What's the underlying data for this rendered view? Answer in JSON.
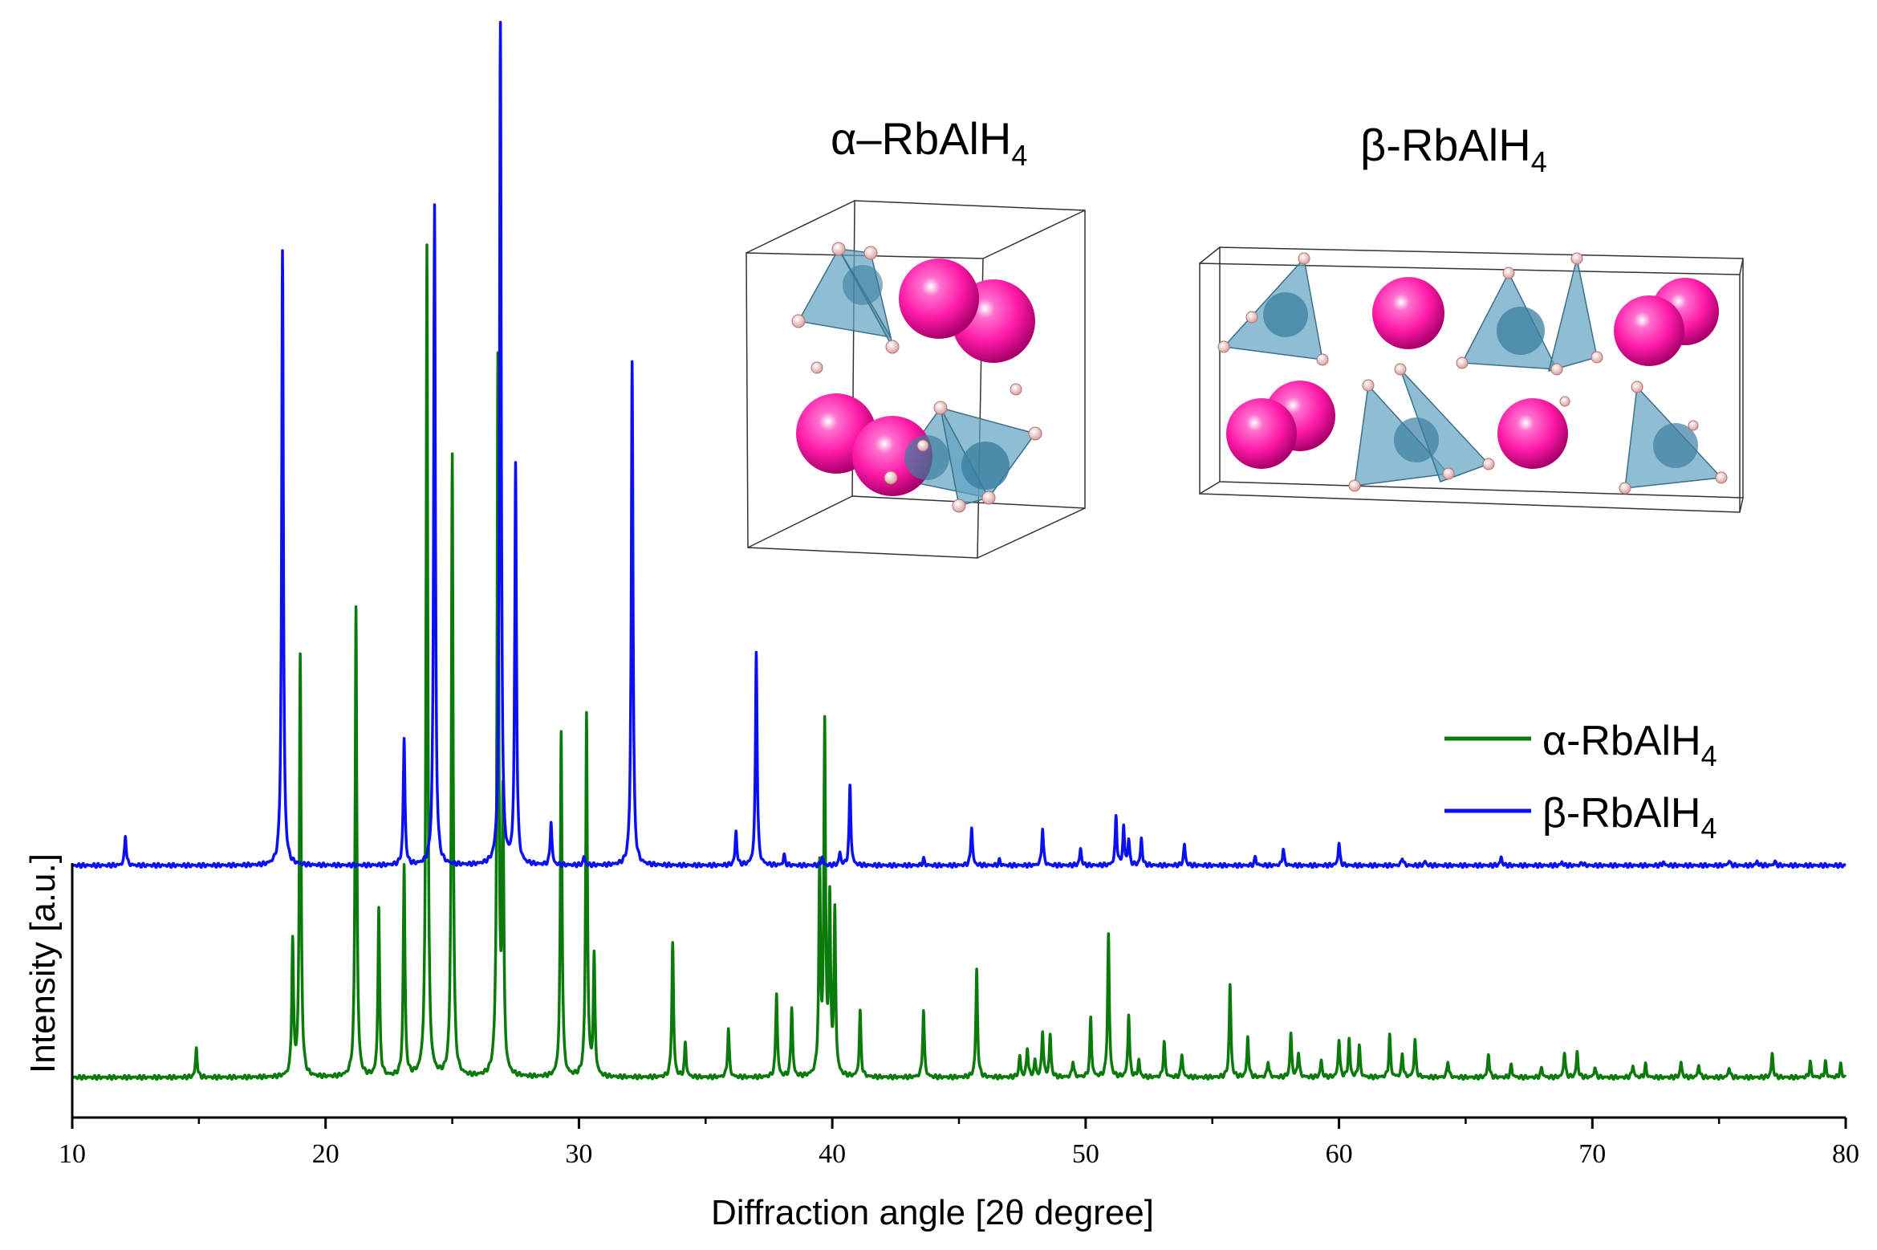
{
  "chart_data": {
    "type": "line",
    "title": "",
    "xlabel": "Diffraction angle [2θ degree]",
    "ylabel": "Intensity [a.u.]",
    "xlim": [
      10,
      80
    ],
    "xticks": [
      10,
      20,
      30,
      40,
      50,
      60,
      70,
      80
    ],
    "xtick_labels": [
      "10",
      "20",
      "30",
      "40",
      "50",
      "60",
      "70",
      "80"
    ],
    "ylim": [
      0,
      1.3
    ],
    "y_ticks_shown": false,
    "grid": false,
    "legend_position": "right",
    "series": [
      {
        "name": "α-RbAlH",
        "name_sub": "4",
        "color": "#0a7a0a",
        "offset": 0,
        "peak_width": 0.08,
        "peaks": [
          [
            14.9,
            0.035
          ],
          [
            18.7,
            0.16
          ],
          [
            19.0,
            0.5
          ],
          [
            21.2,
            0.56
          ],
          [
            22.1,
            0.2
          ],
          [
            23.1,
            0.25
          ],
          [
            24.0,
            0.99
          ],
          [
            25.0,
            0.74
          ],
          [
            26.8,
            0.85
          ],
          [
            27.0,
            0.32
          ],
          [
            29.3,
            0.41
          ],
          [
            30.3,
            0.43
          ],
          [
            30.6,
            0.14
          ],
          [
            33.7,
            0.16
          ],
          [
            34.2,
            0.04
          ],
          [
            35.9,
            0.058
          ],
          [
            37.8,
            0.1
          ],
          [
            38.4,
            0.083
          ],
          [
            39.5,
            0.24
          ],
          [
            39.7,
            0.41
          ],
          [
            39.9,
            0.2
          ],
          [
            40.1,
            0.19
          ],
          [
            41.1,
            0.077
          ],
          [
            43.6,
            0.08
          ],
          [
            45.7,
            0.128
          ],
          [
            47.4,
            0.025
          ],
          [
            47.7,
            0.035
          ],
          [
            48.0,
            0.02
          ],
          [
            48.3,
            0.055
          ],
          [
            48.6,
            0.05
          ],
          [
            49.5,
            0.02
          ],
          [
            50.2,
            0.07
          ],
          [
            50.9,
            0.17
          ],
          [
            51.7,
            0.075
          ],
          [
            52.1,
            0.02
          ],
          [
            53.1,
            0.042
          ],
          [
            53.8,
            0.028
          ],
          [
            55.7,
            0.11
          ],
          [
            56.4,
            0.048
          ],
          [
            57.2,
            0.02
          ],
          [
            58.1,
            0.052
          ],
          [
            58.4,
            0.03
          ],
          [
            59.3,
            0.02
          ],
          [
            60.0,
            0.045
          ],
          [
            60.4,
            0.045
          ],
          [
            60.8,
            0.038
          ],
          [
            62.0,
            0.05
          ],
          [
            62.5,
            0.028
          ],
          [
            63.0,
            0.045
          ],
          [
            64.3,
            0.02
          ],
          [
            65.9,
            0.028
          ],
          [
            66.8,
            0.015
          ],
          [
            68.0,
            0.012
          ],
          [
            68.9,
            0.03
          ],
          [
            69.4,
            0.03
          ],
          [
            70.1,
            0.012
          ],
          [
            71.6,
            0.015
          ],
          [
            72.1,
            0.015
          ],
          [
            73.5,
            0.018
          ],
          [
            74.2,
            0.015
          ],
          [
            75.4,
            0.012
          ],
          [
            77.1,
            0.028
          ],
          [
            78.6,
            0.018
          ],
          [
            79.2,
            0.018
          ],
          [
            79.8,
            0.015
          ]
        ]
      },
      {
        "name": "β-RbAlH",
        "name_sub": "4",
        "color": "#0b10f2",
        "offset": 0.252,
        "peak_width": 0.08,
        "peaks": [
          [
            12.1,
            0.036
          ],
          [
            18.3,
            0.73
          ],
          [
            23.1,
            0.15
          ],
          [
            24.3,
            0.785
          ],
          [
            26.9,
            1.0
          ],
          [
            27.5,
            0.475
          ],
          [
            28.9,
            0.052
          ],
          [
            30.2,
            0.01
          ],
          [
            32.1,
            0.6
          ],
          [
            36.2,
            0.04
          ],
          [
            37.0,
            0.255
          ],
          [
            38.1,
            0.012
          ],
          [
            39.6,
            0.01
          ],
          [
            40.3,
            0.015
          ],
          [
            40.7,
            0.095
          ],
          [
            43.6,
            0.008
          ],
          [
            45.5,
            0.046
          ],
          [
            46.6,
            0.006
          ],
          [
            48.3,
            0.045
          ],
          [
            49.8,
            0.02
          ],
          [
            51.2,
            0.058
          ],
          [
            51.5,
            0.045
          ],
          [
            51.7,
            0.03
          ],
          [
            52.2,
            0.032
          ],
          [
            53.9,
            0.025
          ],
          [
            56.7,
            0.01
          ],
          [
            57.8,
            0.02
          ],
          [
            60.0,
            0.027
          ],
          [
            62.5,
            0.01
          ],
          [
            63.4,
            0.005
          ],
          [
            66.4,
            0.01
          ],
          [
            68.8,
            0.004
          ],
          [
            69.6,
            0.004
          ],
          [
            72.8,
            0.004
          ],
          [
            75.4,
            0.006
          ],
          [
            76.5,
            0.005
          ],
          [
            77.2,
            0.005
          ]
        ]
      }
    ],
    "inset_labels": [
      {
        "text": "α–RbAlH",
        "sub": "4"
      },
      {
        "text": "β-RbAlH",
        "sub": "4"
      }
    ]
  }
}
